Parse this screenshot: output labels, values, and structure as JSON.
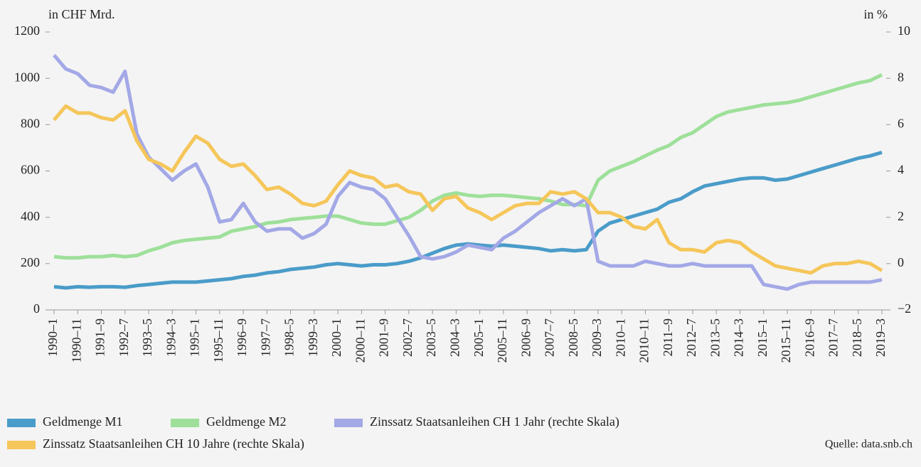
{
  "chart_data": {
    "type": "line",
    "y_label": "in CHF Mrd.",
    "y2_label": "in %",
    "source": "Quelle: data.snb.ch",
    "categories": [
      "1990–1",
      null,
      "1990–11",
      null,
      "1991–9",
      null,
      "1992–7",
      null,
      "1993–5",
      null,
      "1994–3",
      null,
      "1995–1",
      null,
      "1995–11",
      null,
      "1996–9",
      null,
      "1997–7",
      null,
      "1998–5",
      null,
      "1999–3",
      null,
      "2000–1",
      null,
      "2000–11",
      null,
      "2001–9",
      null,
      "2002–7",
      null,
      "2003–5",
      null,
      "2004–3",
      null,
      "2005–1",
      null,
      "2005–11",
      null,
      "2006–9",
      null,
      "2007–7",
      null,
      "2008–5",
      null,
      "2009–3",
      null,
      "2010–1",
      null,
      "2010–11",
      null,
      "2011–9",
      null,
      "2012–7",
      null,
      "2013–5",
      null,
      "2014–3",
      null,
      "2015–1",
      null,
      "2015–11",
      null,
      "2016–9",
      null,
      "2017–7",
      null,
      "2018–5",
      null,
      "2019–3"
    ],
    "series": [
      {
        "name": "Geldmenge M1",
        "color": "#4a9cc9",
        "values": [
          100,
          95,
          100,
          98,
          100,
          100,
          98,
          105,
          110,
          115,
          120,
          120,
          120,
          125,
          130,
          135,
          145,
          150,
          160,
          165,
          175,
          180,
          185,
          195,
          200,
          195,
          190,
          195,
          195,
          200,
          210,
          225,
          245,
          265,
          280,
          285,
          280,
          275,
          280,
          275,
          270,
          265,
          255,
          260,
          255,
          260,
          340,
          375,
          390,
          405,
          420,
          435,
          465,
          480,
          510,
          535,
          545,
          555,
          565,
          570,
          570,
          560,
          565,
          580,
          595,
          610,
          625,
          640,
          655,
          665,
          680
        ]
      },
      {
        "name": "Geldmenge M2",
        "color": "#9ee09a",
        "values": [
          230,
          225,
          225,
          230,
          230,
          235,
          230,
          235,
          255,
          270,
          290,
          300,
          305,
          310,
          315,
          340,
          350,
          360,
          375,
          380,
          390,
          395,
          400,
          405,
          405,
          390,
          375,
          370,
          370,
          385,
          400,
          430,
          470,
          495,
          505,
          495,
          490,
          495,
          495,
          490,
          485,
          480,
          470,
          455,
          455,
          450,
          560,
          600,
          620,
          640,
          665,
          690,
          710,
          745,
          765,
          800,
          835,
          855,
          865,
          875,
          885,
          890,
          895,
          905,
          920,
          935,
          950,
          965,
          980,
          990,
          1015
        ]
      },
      {
        "name": "Zinssatz Staatsanleihen CH 1 Jahr (rechte Skala)",
        "color": "#a3a8e6",
        "axis": "y2",
        "values": [
          9.0,
          8.4,
          8.2,
          7.7,
          7.6,
          7.4,
          8.3,
          5.6,
          4.6,
          4.1,
          3.6,
          4.0,
          4.3,
          3.3,
          1.8,
          1.9,
          2.6,
          1.8,
          1.4,
          1.5,
          1.5,
          1.1,
          1.3,
          1.7,
          2.9,
          3.5,
          3.3,
          3.2,
          2.8,
          2.0,
          1.2,
          0.3,
          0.2,
          0.3,
          0.5,
          0.8,
          0.7,
          0.6,
          1.1,
          1.4,
          1.8,
          2.2,
          2.5,
          2.8,
          2.5,
          2.8,
          0.1,
          -0.1,
          -0.1,
          -0.1,
          0.1,
          0.0,
          -0.1,
          -0.1,
          0.0,
          -0.1,
          -0.1,
          -0.1,
          -0.1,
          -0.1,
          -0.9,
          -1.0,
          -1.1,
          -0.9,
          -0.8,
          -0.8,
          -0.8,
          -0.8,
          -0.8,
          -0.8,
          -0.7
        ]
      },
      {
        "name": "Zinssatz Staatsanleihen CH 10 Jahre (rechte Skala)",
        "color": "#f5c65a",
        "axis": "y2",
        "values": [
          6.2,
          6.8,
          6.5,
          6.5,
          6.3,
          6.2,
          6.6,
          5.3,
          4.5,
          4.3,
          4.0,
          4.8,
          5.5,
          5.2,
          4.5,
          4.2,
          4.3,
          3.8,
          3.2,
          3.3,
          3.0,
          2.6,
          2.5,
          2.7,
          3.4,
          4.0,
          3.8,
          3.7,
          3.3,
          3.4,
          3.1,
          3.0,
          2.3,
          2.8,
          2.9,
          2.4,
          2.2,
          1.9,
          2.2,
          2.5,
          2.6,
          2.6,
          3.1,
          3.0,
          3.1,
          2.8,
          2.2,
          2.2,
          2.0,
          1.6,
          1.5,
          1.9,
          0.9,
          0.6,
          0.6,
          0.5,
          0.9,
          1.0,
          0.9,
          0.5,
          0.2,
          -0.1,
          -0.2,
          -0.3,
          -0.4,
          -0.1,
          0.0,
          0.0,
          0.1,
          0.0,
          -0.3
        ]
      }
    ],
    "ylim": [
      0,
      1200
    ],
    "yticks": [
      0,
      200,
      400,
      600,
      800,
      1000,
      1200
    ],
    "y2lim": [
      -2,
      10
    ],
    "y2ticks": [
      {
        "value": -2,
        "label": "−2"
      },
      0,
      2,
      4,
      6,
      8,
      10
    ]
  }
}
